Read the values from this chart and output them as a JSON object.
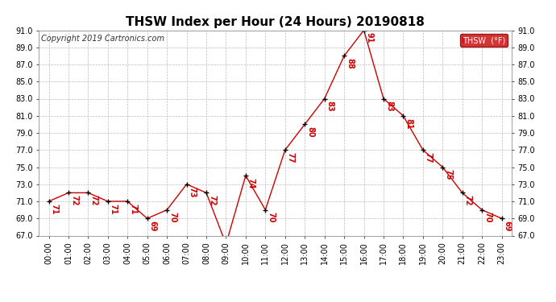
{
  "title": "THSW Index per Hour (24 Hours) 20190818",
  "copyright": "Copyright 2019 Cartronics.com",
  "legend_label": "THSW  (°F)",
  "hours": [
    "00:00",
    "01:00",
    "02:00",
    "03:00",
    "04:00",
    "05:00",
    "06:00",
    "07:00",
    "08:00",
    "09:00",
    "10:00",
    "11:00",
    "12:00",
    "13:00",
    "14:00",
    "15:00",
    "16:00",
    "17:00",
    "18:00",
    "19:00",
    "20:00",
    "21:00",
    "22:00",
    "23:00"
  ],
  "values": [
    71,
    72,
    72,
    71,
    71,
    69,
    70,
    73,
    72,
    66,
    74,
    70,
    77,
    80,
    83,
    88,
    91,
    83,
    81,
    77,
    75,
    72,
    70,
    69
  ],
  "line_color": "#cc0000",
  "marker_color": "#000000",
  "label_color": "#cc0000",
  "bg_color": "#ffffff",
  "grid_color": "#bbbbbb",
  "ylim_min": 67.0,
  "ylim_max": 91.0,
  "title_fontsize": 11,
  "label_fontsize": 7,
  "tick_fontsize": 7,
  "copyright_fontsize": 7,
  "legend_bg": "#cc0000",
  "legend_text_color": "#ffffff"
}
